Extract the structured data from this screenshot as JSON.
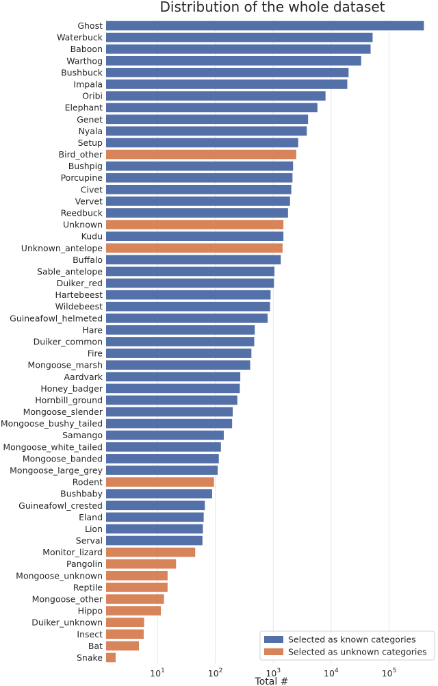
{
  "chart_data": {
    "type": "bar",
    "orientation": "horizontal",
    "title": "Distribution of the whole dataset",
    "xlabel": "Total #",
    "ylabel": "",
    "xscale": "log",
    "xlim": [
      1.3,
      700000
    ],
    "xticks": [
      {
        "value": 10,
        "base": "10",
        "exp": "1"
      },
      {
        "value": 100,
        "base": "10",
        "exp": "2"
      },
      {
        "value": 1000,
        "base": "10",
        "exp": "3"
      },
      {
        "value": 10000,
        "base": "10",
        "exp": "4"
      },
      {
        "value": 100000,
        "base": "10",
        "exp": "5"
      }
    ],
    "grid": "vertical",
    "legend_position": "bottom-right",
    "colors": {
      "known": "#5470a8",
      "unknown": "#d8845b"
    },
    "legend": [
      {
        "key": "known",
        "label": "Selected as known categories"
      },
      {
        "key": "unknown",
        "label": "Selected as unknown categories"
      }
    ],
    "bars": [
      {
        "label": "Ghost",
        "value": 400000,
        "group": "known"
      },
      {
        "label": "Waterbuck",
        "value": 52000,
        "group": "known"
      },
      {
        "label": "Baboon",
        "value": 48000,
        "group": "known"
      },
      {
        "label": "Warthog",
        "value": 33000,
        "group": "known"
      },
      {
        "label": "Bushbuck",
        "value": 20000,
        "group": "known"
      },
      {
        "label": "Impala",
        "value": 19000,
        "group": "known"
      },
      {
        "label": "Oribi",
        "value": 8000,
        "group": "known"
      },
      {
        "label": "Elephant",
        "value": 5800,
        "group": "known"
      },
      {
        "label": "Genet",
        "value": 4000,
        "group": "known"
      },
      {
        "label": "Nyala",
        "value": 3800,
        "group": "known"
      },
      {
        "label": "Setup",
        "value": 2700,
        "group": "known"
      },
      {
        "label": "Bird_other",
        "value": 2500,
        "group": "unknown"
      },
      {
        "label": "Bushpig",
        "value": 2200,
        "group": "known"
      },
      {
        "label": "Porcupine",
        "value": 2150,
        "group": "known"
      },
      {
        "label": "Civet",
        "value": 2050,
        "group": "known"
      },
      {
        "label": "Vervet",
        "value": 1950,
        "group": "known"
      },
      {
        "label": "Reedbuck",
        "value": 1800,
        "group": "known"
      },
      {
        "label": "Unknown",
        "value": 1500,
        "group": "unknown"
      },
      {
        "label": "Kudu",
        "value": 1500,
        "group": "known"
      },
      {
        "label": "Unknown_antelope",
        "value": 1450,
        "group": "unknown"
      },
      {
        "label": "Buffalo",
        "value": 1350,
        "group": "known"
      },
      {
        "label": "Sable_antelope",
        "value": 1050,
        "group": "known"
      },
      {
        "label": "Duiker_red",
        "value": 1030,
        "group": "known"
      },
      {
        "label": "Hartebeest",
        "value": 900,
        "group": "known"
      },
      {
        "label": "Wildebeest",
        "value": 880,
        "group": "known"
      },
      {
        "label": "Guineafowl_helmeted",
        "value": 800,
        "group": "known"
      },
      {
        "label": "Hare",
        "value": 480,
        "group": "known"
      },
      {
        "label": "Duiker_common",
        "value": 470,
        "group": "known"
      },
      {
        "label": "Fire",
        "value": 420,
        "group": "known"
      },
      {
        "label": "Mongoose_marsh",
        "value": 400,
        "group": "known"
      },
      {
        "label": "Aardvark",
        "value": 270,
        "group": "known"
      },
      {
        "label": "Honey_badger",
        "value": 265,
        "group": "known"
      },
      {
        "label": "Hornbill_ground",
        "value": 240,
        "group": "known"
      },
      {
        "label": "Mongoose_slender",
        "value": 200,
        "group": "known"
      },
      {
        "label": "Mongoose_bushy_tailed",
        "value": 195,
        "group": "known"
      },
      {
        "label": "Samango",
        "value": 140,
        "group": "known"
      },
      {
        "label": "Mongoose_white_tailed",
        "value": 125,
        "group": "known"
      },
      {
        "label": "Mongoose_banded",
        "value": 115,
        "group": "known"
      },
      {
        "label": "Mongoose_large_grey",
        "value": 110,
        "group": "known"
      },
      {
        "label": "Rodent",
        "value": 95,
        "group": "unknown"
      },
      {
        "label": "Bushbaby",
        "value": 88,
        "group": "known"
      },
      {
        "label": "Guineafowl_crested",
        "value": 66,
        "group": "known"
      },
      {
        "label": "Eland",
        "value": 63,
        "group": "known"
      },
      {
        "label": "Lion",
        "value": 61,
        "group": "known"
      },
      {
        "label": "Serval",
        "value": 60,
        "group": "known"
      },
      {
        "label": "Monitor_lizard",
        "value": 45,
        "group": "unknown"
      },
      {
        "label": "Pangolin",
        "value": 21,
        "group": "unknown"
      },
      {
        "label": "Mongoose_unknown",
        "value": 15,
        "group": "unknown"
      },
      {
        "label": "Reptile",
        "value": 15,
        "group": "unknown"
      },
      {
        "label": "Mongoose_other",
        "value": 13,
        "group": "unknown"
      },
      {
        "label": "Hippo",
        "value": 11.5,
        "group": "unknown"
      },
      {
        "label": "Duiker_unknown",
        "value": 5.9,
        "group": "unknown"
      },
      {
        "label": "Insect",
        "value": 5.8,
        "group": "unknown"
      },
      {
        "label": "Bat",
        "value": 4.8,
        "group": "unknown"
      },
      {
        "label": "Snake",
        "value": 1.9,
        "group": "unknown"
      }
    ]
  }
}
